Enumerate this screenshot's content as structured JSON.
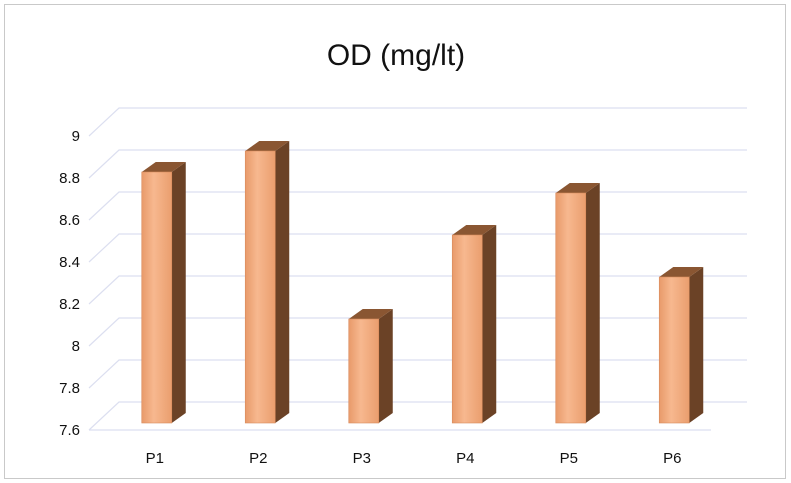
{
  "chart_data": {
    "type": "bar",
    "title": "OD (mg/lt)",
    "categories": [
      "P1",
      "P2",
      "P3",
      "P4",
      "P5",
      "P6"
    ],
    "values": [
      8.8,
      8.9,
      8.1,
      8.5,
      8.7,
      8.3
    ],
    "y_ticks": [
      "7.6",
      "7.8",
      "8",
      "8.2",
      "8.4",
      "8.6",
      "8.8",
      "9"
    ],
    "ylim": [
      7.6,
      9
    ],
    "xlabel": "",
    "ylabel": "",
    "grid": true,
    "legend": "none",
    "style": "3d-column"
  },
  "colors": {
    "bar_front": "#f3a677",
    "bar_side": "#6b4226",
    "bar_top": "#8a5632",
    "grid": "#dcdff0"
  }
}
